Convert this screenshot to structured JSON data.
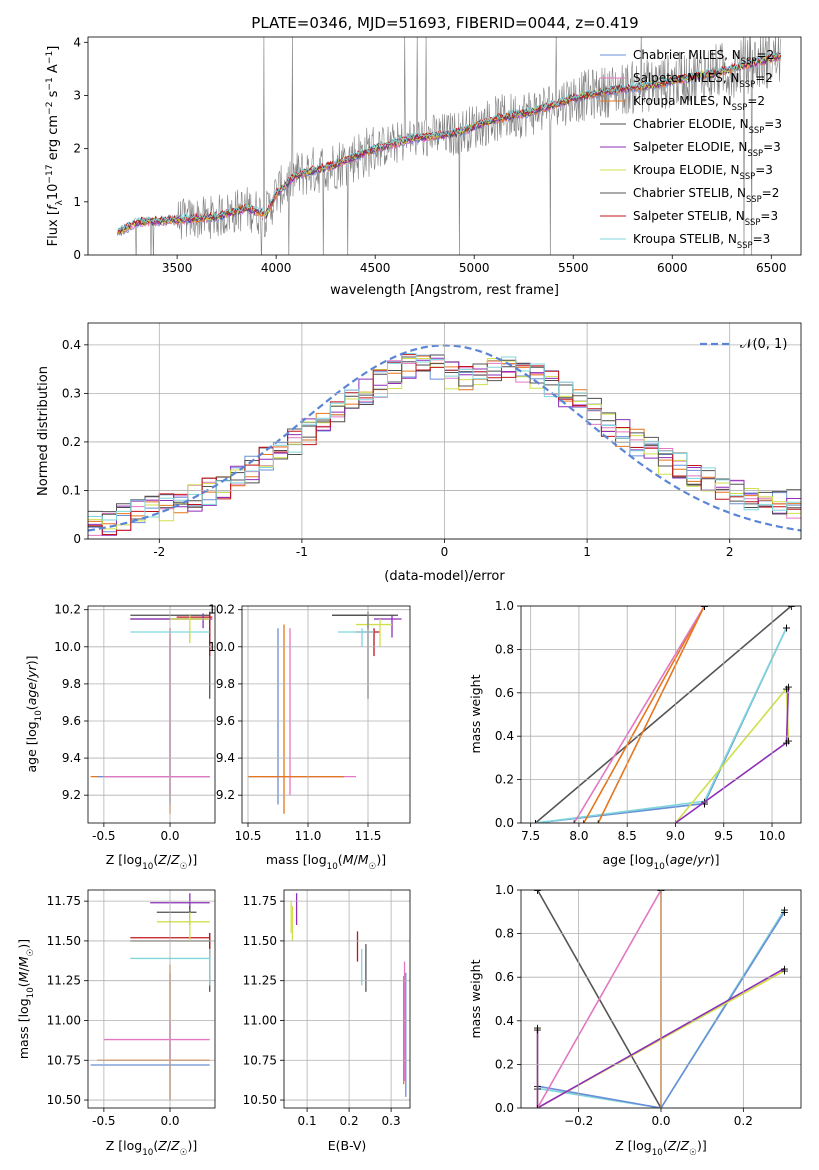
{
  "figure": {
    "title": "PLATE=0346, MJD=51693, FIBERID=0044, z=0.419"
  },
  "colors": {
    "Chabrier MILES": "#6a8fd8",
    "Salpeter MILES": "#e377c2",
    "Kroupa MILES": "#e6761d",
    "Chabrier ELODIE": "#4d4d4d",
    "Salpeter ELODIE": "#8e2fb8",
    "Kroupa ELODIE": "#cfe04a",
    "Chabrier STELIB": "#555555",
    "Salpeter STELIB": "#c0141b",
    "Kroupa STELIB": "#7fd6dd",
    "data": "#808080",
    "gaussian": "#5b86d6"
  },
  "chart_data": [
    {
      "type": "line",
      "xlabel": "wavelength [Angstrom, rest frame]",
      "ylabel": "Flux [f_λ 10^-17 erg cm^-2 s^-1 A^-1]",
      "xlim": [
        3050,
        6650
      ],
      "ylim": [
        0,
        4.1
      ],
      "xticks": [
        3500,
        4000,
        4500,
        5000,
        5500,
        6000,
        6500
      ],
      "yticks": [
        0,
        1,
        2,
        3,
        4
      ],
      "legend_placement": "top-right",
      "legend": [
        "Chabrier MILES, N_SSP=2",
        "Salpeter MILES, N_SSP=2",
        "Kroupa MILES, N_SSP=2",
        "Chabrier ELODIE, N_SSP=3",
        "Salpeter ELODIE, N_SSP=3",
        "Kroupa ELODIE, N_SSP=3",
        "Chabrier STELIB, N_SSP=2",
        "Salpeter STELIB, N_SSP=3",
        "Kroupa STELIB, N_SSP=3"
      ],
      "model_continuum": {
        "x": [
          3200,
          3300,
          3500,
          3700,
          3850,
          3950,
          4000,
          4100,
          4300,
          4500,
          4700,
          4900,
          5100,
          5300,
          5500,
          5700,
          5900,
          6100,
          6300,
          6500,
          6550
        ],
        "y": [
          0.42,
          0.62,
          0.66,
          0.72,
          0.88,
          0.76,
          1.15,
          1.5,
          1.7,
          2.0,
          2.2,
          2.28,
          2.55,
          2.7,
          2.95,
          3.1,
          3.2,
          3.35,
          3.5,
          3.7,
          3.75
        ]
      }
    },
    {
      "type": "line",
      "xlabel": "(data-model)/error",
      "ylabel": "Normed distribution",
      "xlim": [
        -2.5,
        2.5
      ],
      "ylim": [
        0,
        0.445
      ],
      "xticks": [
        -2,
        -1,
        0,
        1,
        2
      ],
      "yticks": [
        0.0,
        0.1,
        0.2,
        0.3,
        0.4
      ],
      "legend": [
        "𝒩(0, 1)"
      ],
      "legend_placement": "top-right",
      "histogram_mean": {
        "x": [
          -2.5,
          -2.3,
          -2.1,
          -1.9,
          -1.7,
          -1.5,
          -1.3,
          -1.1,
          -0.9,
          -0.7,
          -0.5,
          -0.3,
          -0.1,
          0.1,
          0.3,
          0.5,
          0.7,
          0.9,
          1.1,
          1.3,
          1.5,
          1.7,
          1.9,
          2.1,
          2.3,
          2.5
        ],
        "y": [
          0.025,
          0.04,
          0.055,
          0.07,
          0.09,
          0.12,
          0.15,
          0.19,
          0.23,
          0.27,
          0.31,
          0.35,
          0.36,
          0.33,
          0.35,
          0.35,
          0.33,
          0.29,
          0.25,
          0.21,
          0.17,
          0.14,
          0.11,
          0.09,
          0.08,
          0.07
        ]
      }
    },
    {
      "type": "scatter",
      "xlabel": "Z [log10(Z/Z☉)]",
      "ylabel": "age [log10(age/yr)]",
      "xlim": [
        -0.62,
        0.34
      ],
      "ylim": [
        9.05,
        10.22
      ],
      "xticks": [
        "-0.5",
        "0.0"
      ],
      "yticks": [
        "9.2",
        "9.4",
        "9.6",
        "9.8",
        "10.0",
        "10.2"
      ]
    },
    {
      "type": "scatter",
      "xlabel": "mass [log10(M/M☉)]",
      "ylabel": "",
      "xlim": [
        10.45,
        11.85
      ],
      "ylim": [
        9.05,
        10.22
      ],
      "xticks": [
        "10.5",
        "11.0",
        "11.5"
      ],
      "yticks": [
        "9.2",
        "9.4",
        "9.6",
        "9.8",
        "10.0",
        "10.2"
      ]
    },
    {
      "type": "line",
      "xlabel": "age [log10(age/yr)]",
      "ylabel": "mass weight",
      "xlim": [
        7.4,
        10.3
      ],
      "ylim": [
        0,
        1
      ],
      "xticks": [
        "7.5",
        "8.0",
        "8.5",
        "9.0",
        "9.5",
        "10.0"
      ],
      "yticks": [
        "0.0",
        "0.2",
        "0.4",
        "0.6",
        "0.8",
        "1.0"
      ]
    },
    {
      "type": "scatter",
      "xlabel": "Z [log10(Z/Z☉)]",
      "ylabel": "mass [log10(M/M☉)]",
      "xlim": [
        -0.62,
        0.34
      ],
      "ylim": [
        10.45,
        11.82
      ],
      "xticks": [
        "-0.5",
        "0.0"
      ],
      "yticks": [
        "10.50",
        "10.75",
        "11.00",
        "11.25",
        "11.50",
        "11.75"
      ]
    },
    {
      "type": "scatter",
      "xlabel": "E(B-V)",
      "ylabel": "",
      "xlim": [
        0.045,
        0.345
      ],
      "ylim": [
        10.45,
        11.82
      ],
      "xticks": [
        "0.1",
        "0.2",
        "0.3"
      ],
      "yticks": [
        "10.50",
        "10.75",
        "11.00",
        "11.25",
        "11.50",
        "11.75"
      ]
    },
    {
      "type": "line",
      "xlabel": "Z [log10(Z/Z☉)]",
      "ylabel": "mass weight",
      "xlim": [
        -0.34,
        0.34
      ],
      "ylim": [
        0,
        1
      ],
      "xticks": [
        "−0.2",
        "0.0",
        "0.2"
      ],
      "yticks": [
        "0.0",
        "0.2",
        "0.4",
        "0.6",
        "0.8",
        "1.0"
      ]
    }
  ]
}
